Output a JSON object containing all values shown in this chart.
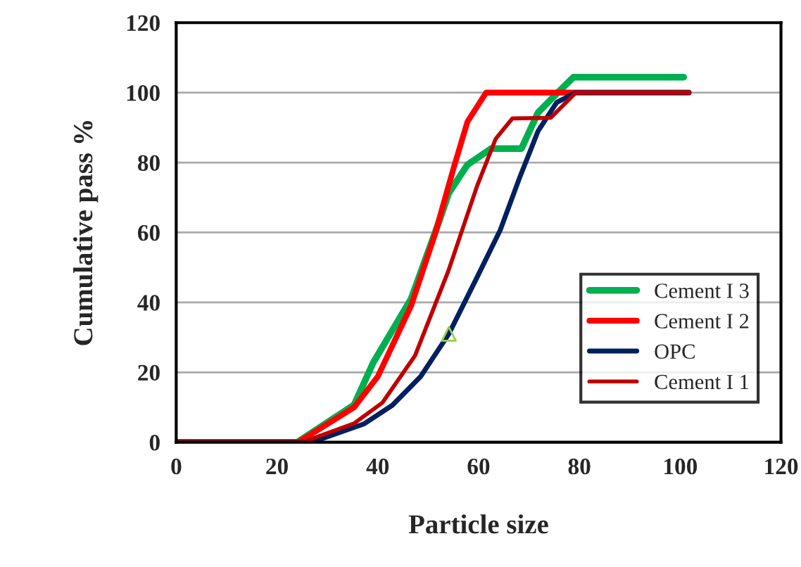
{
  "chart_data": {
    "type": "line",
    "xlabel": "Particle size",
    "ylabel": "Cumulative pass %",
    "xlim": [
      0,
      120
    ],
    "xticks": [
      0,
      20,
      40,
      60,
      80,
      100,
      120
    ],
    "ylim": [
      0,
      120
    ],
    "yticks": [
      0,
      20,
      40,
      60,
      80,
      100,
      120
    ],
    "grid": "y",
    "legend": "bottom right",
    "marker": "none",
    "line_style": "solid",
    "series": [
      {
        "name": "Cement I 3",
        "color": "#00b050",
        "x": [
          0,
          24,
          35.3,
          39.1,
          46.6,
          52.2,
          54.1,
          57.8,
          62.5,
          68.5,
          71.8,
          75.5,
          78.8,
          100.7
        ],
        "values": [
          0,
          0,
          10.7,
          22.8,
          41,
          63.3,
          71.3,
          79.4,
          84,
          84,
          94.3,
          99.7,
          104.4,
          104.4
        ]
      },
      {
        "name": "Cement I 2",
        "color": "#ff0000",
        "x": [
          0,
          24.2,
          35.3,
          40,
          46.6,
          51.3,
          55,
          57.8,
          61.5,
          101.7
        ],
        "values": [
          0,
          0,
          10,
          18.8,
          39,
          59.3,
          78.2,
          91.7,
          100,
          100
        ]
      },
      {
        "name": "OPC",
        "color": "#002060",
        "x": [
          0,
          25,
          27.9,
          37.2,
          42.9,
          48.5,
          54.1,
          59.7,
          64.3,
          68.1,
          71.8,
          75.5,
          79.3,
          101.7
        ],
        "values": [
          0,
          0,
          0.5,
          5.2,
          10.6,
          18.8,
          31,
          47.2,
          60.7,
          75.5,
          89,
          97.2,
          100,
          100
        ]
      },
      {
        "name": "Cement I 1",
        "color": "#c00000",
        "x": [
          0,
          24,
          26,
          35.3,
          40.9,
          47.4,
          54,
          59.7,
          63.4,
          66.7,
          74.3,
          79.3,
          101.7
        ],
        "values": [
          0,
          0,
          0.5,
          5.4,
          11.3,
          24.8,
          49,
          73.3,
          86.8,
          92.6,
          92.8,
          100,
          100
        ]
      },
      {
        "type": "scatter",
        "marker": "triangle",
        "color": "#92d050",
        "x": [
          54.1
        ],
        "values": [
          31
        ]
      }
    ]
  }
}
